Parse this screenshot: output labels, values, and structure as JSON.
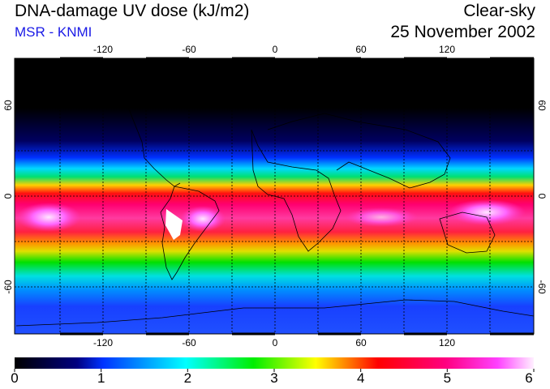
{
  "header": {
    "title": "DNA-damage UV dose (kJ/m2)",
    "subtitle": "MSR - KNMI",
    "sky": "Clear-sky",
    "date": "25 November 2002"
  },
  "map": {
    "projection": "equirectangular",
    "lon_range": [
      -180,
      180
    ],
    "lat_range": [
      -90,
      90
    ],
    "lon_ticks": [
      "-120",
      "-60",
      "0",
      "60",
      "120"
    ],
    "lat_ticks": [
      "60",
      "0",
      "-60"
    ],
    "lat_ticks_right": [
      "60",
      "0",
      "-60"
    ]
  },
  "colorbar": {
    "min": 0,
    "max": 6,
    "labels": [
      "0",
      "1",
      "2",
      "3",
      "4",
      "5",
      "6"
    ],
    "colors": [
      "#000000",
      "#0033ff",
      "#00ffff",
      "#00ee00",
      "#ffff00",
      "#ff0000",
      "#ff0080",
      "#ff00ff",
      "#ffe0ff"
    ]
  }
}
